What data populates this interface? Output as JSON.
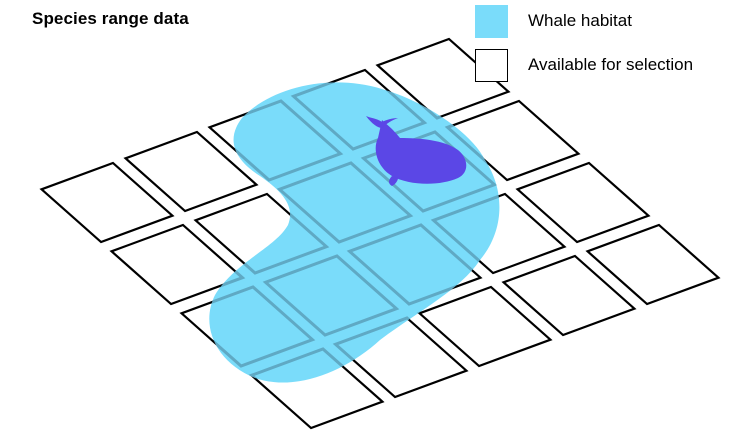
{
  "title": "Species range data",
  "legend": {
    "items": [
      {
        "label": "Whale habitat",
        "swatch": "fill",
        "color": "#7adcfa"
      },
      {
        "label": "Available for selection",
        "swatch": "outline",
        "color": "#000000"
      }
    ]
  },
  "colors": {
    "habitat": "#7adcfa",
    "habitat_grid_line": "#5fa9c4",
    "grid_line": "#000000",
    "whale": "#5b47e6",
    "background": "#ffffff"
  },
  "icons": {
    "whale": "whale-icon"
  },
  "grid": {
    "rows": 4,
    "cols": 5
  }
}
